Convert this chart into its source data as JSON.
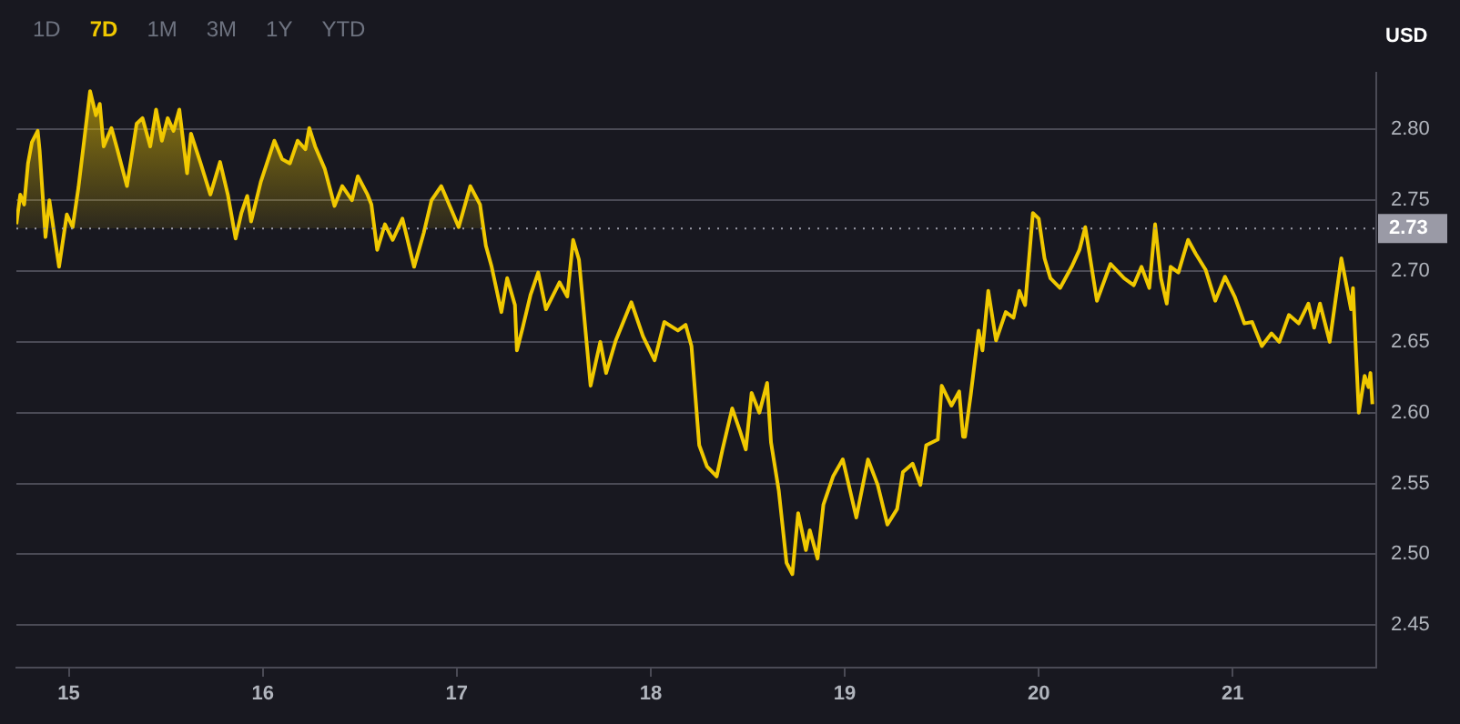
{
  "chart_data": {
    "type": "area",
    "ylabel": "USD",
    "annotations": [
      "1D",
      "7D",
      "1M",
      "3M",
      "1Y",
      "YTD"
    ],
    "xlim": [
      14.73,
      21.74
    ],
    "xticks": [
      15,
      16,
      17,
      18,
      19,
      20,
      21
    ],
    "ylim": [
      2.42,
      2.84
    ],
    "yticks": [
      2.45,
      {
        "value": 2.5,
        "label": "2.50"
      },
      2.55,
      {
        "value": 2.6,
        "label": "2.60"
      },
      2.65,
      {
        "value": 2.7,
        "label": "2.70"
      },
      2.75,
      {
        "value": 2.8,
        "label": "2.80"
      }
    ],
    "grid": "y",
    "legend": false,
    "marker": "none",
    "line_style": "solid",
    "ref_lines": [
      {
        "axis": "y",
        "value": 2.73,
        "label": "2.73",
        "line_style": "dotted",
        "color": "#9a9aa6"
      }
    ],
    "series": [
      {
        "color": "#f0c800",
        "x": [
          14.73,
          14.75,
          14.77,
          14.79,
          14.81,
          14.84,
          14.85,
          14.88,
          14.9,
          14.95,
          14.99,
          15.02,
          15.05,
          15.11,
          15.14,
          15.16,
          15.18,
          15.22,
          15.25,
          15.3,
          15.35,
          15.38,
          15.42,
          15.45,
          15.48,
          15.51,
          15.54,
          15.57,
          15.61,
          15.63,
          15.68,
          15.73,
          15.78,
          15.82,
          15.86,
          15.89,
          15.92,
          15.94,
          15.99,
          16.06,
          16.1,
          16.14,
          16.18,
          16.22,
          16.24,
          16.27,
          16.32,
          16.37,
          16.41,
          16.46,
          16.49,
          16.54,
          16.56,
          16.59,
          16.63,
          16.67,
          16.72,
          16.78,
          16.83,
          16.87,
          16.92,
          16.97,
          17.01,
          17.07,
          17.12,
          17.15,
          17.18,
          17.23,
          17.26,
          17.3,
          17.31,
          17.34,
          17.38,
          17.42,
          17.46,
          17.53,
          17.57,
          17.6,
          17.63,
          17.69,
          17.74,
          17.77,
          17.82,
          17.9,
          17.96,
          18.02,
          18.07,
          18.14,
          18.18,
          18.21,
          18.25,
          18.29,
          18.34,
          18.37,
          18.42,
          18.46,
          18.49,
          18.52,
          18.56,
          18.6,
          18.62,
          18.66,
          18.7,
          18.73,
          18.76,
          18.8,
          18.82,
          18.86,
          18.89,
          18.94,
          18.99,
          19.06,
          19.12,
          19.17,
          19.22,
          19.27,
          19.3,
          19.35,
          19.39,
          19.42,
          19.48,
          19.5,
          19.55,
          19.59,
          19.61,
          19.62,
          19.65,
          19.69,
          19.71,
          19.74,
          19.78,
          19.83,
          19.87,
          19.9,
          19.93,
          19.97,
          20.0,
          20.03,
          20.06,
          20.11,
          20.17,
          20.21,
          20.24,
          20.3,
          20.37,
          20.44,
          20.49,
          20.53,
          20.57,
          20.6,
          20.63,
          20.66,
          20.68,
          20.72,
          20.77,
          20.81,
          20.86,
          20.91,
          20.96,
          21.01,
          21.06,
          21.1,
          21.15,
          21.2,
          21.24,
          21.29,
          21.34,
          21.39,
          21.42,
          21.45,
          21.5,
          21.56,
          21.61,
          21.62,
          21.65,
          21.68,
          21.7,
          21.71,
          21.72
        ],
        "values": [
          2.733,
          2.754,
          2.747,
          2.776,
          2.791,
          2.799,
          2.785,
          2.724,
          2.75,
          2.703,
          2.74,
          2.731,
          2.759,
          2.827,
          2.81,
          2.818,
          2.788,
          2.801,
          2.786,
          2.76,
          2.804,
          2.808,
          2.788,
          2.814,
          2.792,
          2.808,
          2.799,
          2.814,
          2.769,
          2.797,
          2.776,
          2.754,
          2.777,
          2.754,
          2.723,
          2.741,
          2.753,
          2.735,
          2.763,
          2.792,
          2.779,
          2.776,
          2.792,
          2.786,
          2.801,
          2.788,
          2.772,
          2.746,
          2.76,
          2.75,
          2.767,
          2.754,
          2.747,
          2.715,
          2.733,
          2.722,
          2.737,
          2.703,
          2.727,
          2.75,
          2.76,
          2.744,
          2.731,
          2.76,
          2.747,
          2.718,
          2.703,
          2.671,
          2.695,
          2.676,
          2.644,
          2.66,
          2.683,
          2.699,
          2.673,
          2.692,
          2.682,
          2.722,
          2.708,
          2.619,
          2.65,
          2.628,
          2.651,
          2.678,
          2.654,
          2.637,
          2.664,
          2.658,
          2.662,
          2.647,
          2.577,
          2.562,
          2.555,
          2.574,
          2.603,
          2.587,
          2.574,
          2.614,
          2.6,
          2.621,
          2.579,
          2.545,
          2.494,
          2.486,
          2.529,
          2.503,
          2.517,
          2.497,
          2.535,
          2.555,
          2.567,
          2.526,
          2.567,
          2.549,
          2.521,
          2.532,
          2.558,
          2.564,
          2.549,
          2.577,
          2.581,
          2.619,
          2.605,
          2.615,
          2.583,
          2.583,
          2.613,
          2.658,
          2.644,
          2.686,
          2.651,
          2.671,
          2.667,
          2.686,
          2.676,
          2.741,
          2.737,
          2.709,
          2.695,
          2.688,
          2.703,
          2.715,
          2.731,
          2.679,
          2.705,
          2.695,
          2.69,
          2.703,
          2.688,
          2.733,
          2.695,
          2.677,
          2.703,
          2.699,
          2.722,
          2.712,
          2.701,
          2.679,
          2.696,
          2.682,
          2.663,
          2.664,
          2.647,
          2.656,
          2.65,
          2.669,
          2.663,
          2.677,
          2.66,
          2.677,
          2.65,
          2.709,
          2.673,
          2.688,
          2.6,
          2.626,
          2.618,
          2.628,
          2.606
        ]
      }
    ]
  }
}
